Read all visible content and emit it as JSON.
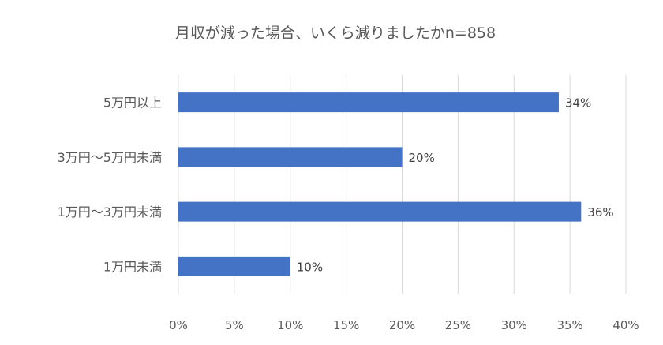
{
  "chart_data": {
    "type": "bar",
    "orientation": "horizontal",
    "title": "月収が減った場合、いくら減りましたかn=858",
    "xlabel": "",
    "ylabel": "",
    "categories": [
      "5万円以上",
      "3万円～5万円未満",
      "1万円～3万円未満",
      "1万円未満"
    ],
    "values": [
      34,
      20,
      36,
      10
    ],
    "data_labels": [
      "34%",
      "20%",
      "36%",
      "10%"
    ],
    "xlim": [
      0,
      40
    ],
    "x_ticks": [
      0,
      5,
      10,
      15,
      20,
      25,
      30,
      35,
      40
    ],
    "x_tick_labels": [
      "0%",
      "5%",
      "10%",
      "15%",
      "20%",
      "25%",
      "30%",
      "35%",
      "40%"
    ],
    "grid": "vertical",
    "legend": "none",
    "bar_color": "#4472C4"
  }
}
